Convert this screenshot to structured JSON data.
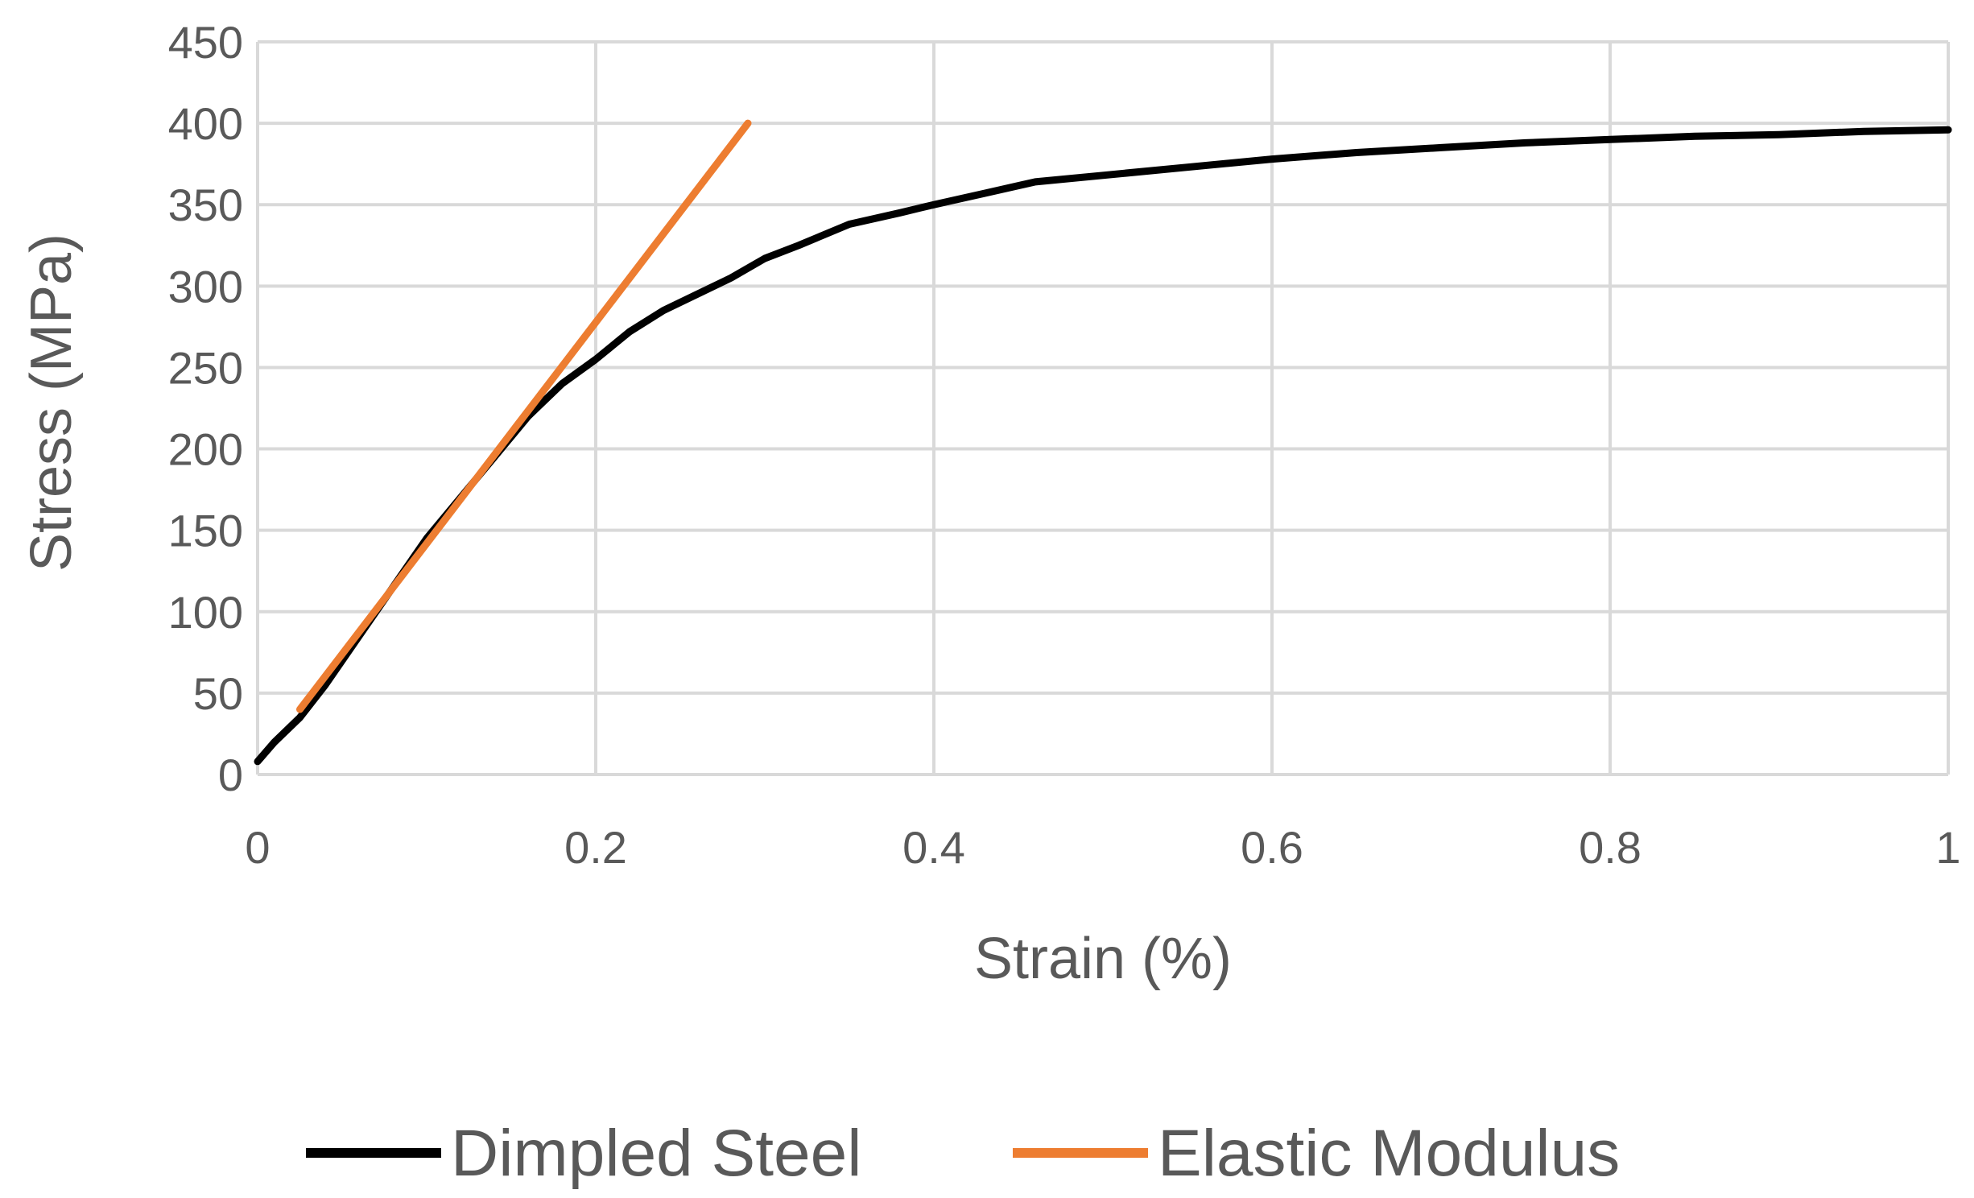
{
  "chart_data": {
    "type": "line",
    "title": "",
    "xlabel": "Strain (%)",
    "ylabel": "Stress (MPa)",
    "xlim": [
      0,
      1
    ],
    "ylim": [
      0,
      450
    ],
    "xticks": [
      0,
      0.2,
      0.4,
      0.6,
      0.8,
      1
    ],
    "xtick_labels": [
      "0",
      "0.2",
      "0.4",
      "0.6",
      "0.8",
      "1"
    ],
    "yticks": [
      0,
      50,
      100,
      150,
      200,
      250,
      300,
      350,
      400,
      450
    ],
    "ytick_labels": [
      "0",
      "50",
      "100",
      "150",
      "200",
      "250",
      "300",
      "350",
      "400",
      "450"
    ],
    "grid": true,
    "legend_position": "bottom",
    "series": [
      {
        "name": "Dimpled Steel",
        "color": "#000000",
        "x": [
          0,
          0.01,
          0.025,
          0.04,
          0.06,
          0.08,
          0.1,
          0.12,
          0.14,
          0.16,
          0.18,
          0.2,
          0.22,
          0.24,
          0.26,
          0.28,
          0.3,
          0.32,
          0.35,
          0.38,
          0.4,
          0.43,
          0.46,
          0.5,
          0.55,
          0.6,
          0.65,
          0.7,
          0.75,
          0.8,
          0.85,
          0.9,
          0.95,
          1.0
        ],
        "y": [
          8,
          20,
          35,
          55,
          85,
          115,
          145,
          170,
          195,
          220,
          240,
          255,
          272,
          285,
          295,
          305,
          317,
          325,
          338,
          345,
          350,
          357,
          364,
          368,
          373,
          378,
          382,
          385,
          388,
          390,
          392,
          393,
          395,
          396
        ]
      },
      {
        "name": "Elastic Modulus",
        "color": "#ED7D31",
        "x": [
          0.025,
          0.29
        ],
        "y": [
          40,
          400
        ]
      }
    ]
  }
}
